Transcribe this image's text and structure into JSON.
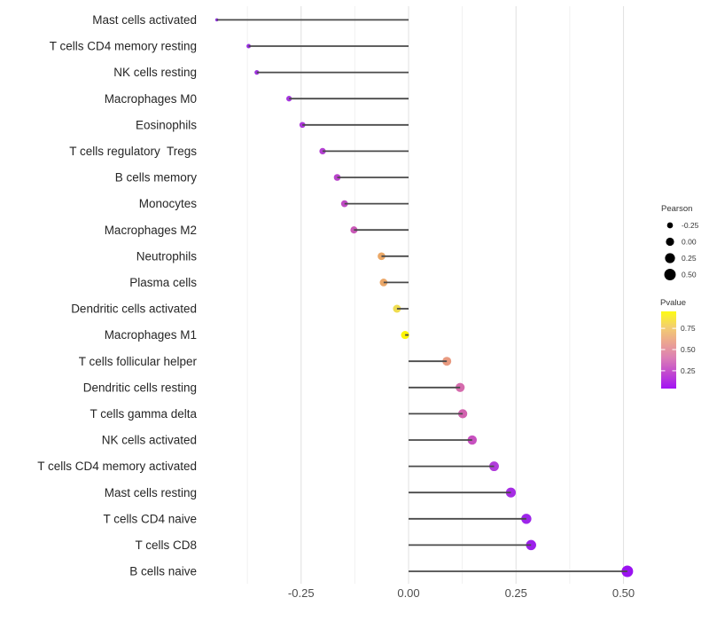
{
  "chart_data": {
    "type": "lollipop",
    "title": "",
    "xlabel": "",
    "ylabel": "",
    "xlim": [
      -0.494,
      0.557
    ],
    "grid": "vertical-only",
    "x_axis": {
      "major_ticks": [
        {
          "label": "-0.25",
          "value": -0.25
        },
        {
          "label": "0.00",
          "value": 0.0
        },
        {
          "label": "0.25",
          "value": 0.25
        },
        {
          "label": "0.50",
          "value": 0.5
        }
      ],
      "minor_ticks": [
        -0.375,
        -0.125,
        0.125,
        0.375
      ]
    },
    "points": [
      {
        "category": "Mast cells activated",
        "pearson": -0.446,
        "color": "#8E2BE1"
      },
      {
        "category": "T cells CD4 memory resting",
        "pearson": -0.372,
        "color": "#982EE1"
      },
      {
        "category": "NK cells resting",
        "pearson": -0.353,
        "color": "#9F33DF"
      },
      {
        "category": "Macrophages M0",
        "pearson": -0.278,
        "color": "#A637DF"
      },
      {
        "category": "Eosinophils",
        "pearson": -0.247,
        "color": "#AC38DA"
      },
      {
        "category": "T cells regulatory  Tregs",
        "pearson": -0.2,
        "color": "#B33FD2"
      },
      {
        "category": "B cells memory",
        "pearson": -0.166,
        "color": "#B944CB"
      },
      {
        "category": "Monocytes",
        "pearson": -0.149,
        "color": "#C04AC4"
      },
      {
        "category": "Macrophages M2",
        "pearson": -0.127,
        "color": "#C958B7"
      },
      {
        "category": "Neutrophils",
        "pearson": -0.063,
        "color": "#EBA867"
      },
      {
        "category": "Plasma cells",
        "pearson": -0.058,
        "color": "#EBA768"
      },
      {
        "category": "Dendritic cells activated",
        "pearson": -0.027,
        "color": "#EFDC50"
      },
      {
        "category": "Macrophages M1",
        "pearson": -0.008,
        "color": "#FDF503"
      },
      {
        "category": "T cells follicular helper",
        "pearson": 0.089,
        "color": "#E89A80"
      },
      {
        "category": "Dendritic cells resting",
        "pearson": 0.12,
        "color": "#D56BAD"
      },
      {
        "category": "T cells gamma delta",
        "pearson": 0.126,
        "color": "#D263AF"
      },
      {
        "category": "NK cells activated",
        "pearson": 0.148,
        "color": "#C851C0"
      },
      {
        "category": "T cells CD4 memory activated",
        "pearson": 0.199,
        "color": "#B13DDB"
      },
      {
        "category": "Mast cells resting",
        "pearson": 0.238,
        "color": "#A62CE4"
      },
      {
        "category": "T cells CD4 naive",
        "pearson": 0.274,
        "color": "#9D25EA"
      },
      {
        "category": "T cells CD8",
        "pearson": 0.285,
        "color": "#9C20EB"
      },
      {
        "category": "B cells naive",
        "pearson": 0.509,
        "color": "#9A13F0"
      }
    ],
    "legend_pearson": {
      "title": "Pearson",
      "dot_color": "#000000",
      "entries": [
        {
          "label": "-0.25",
          "value": -0.25
        },
        {
          "label": "0.00",
          "value": 0.0
        },
        {
          "label": "0.25",
          "value": 0.25
        },
        {
          "label": "0.50",
          "value": 0.5
        }
      ]
    },
    "legend_pvalue": {
      "title": "Pvalue",
      "gradient_top_to_bottom": [
        "#FDFB13",
        "#F3CF6F",
        "#ECA590",
        "#DC7FB5",
        "#C148CF",
        "#A312F5"
      ],
      "bar_value_range": [
        0.95,
        0.04
      ],
      "ticks": [
        {
          "label": "0.75",
          "value": 0.75
        },
        {
          "label": "0.50",
          "value": 0.5
        },
        {
          "label": "0.25",
          "value": 0.25
        }
      ]
    },
    "colors": {
      "stem": "#4A4A4A",
      "grid_major": "#E3E3E3",
      "grid_minor": "#EFEFEF",
      "axis_text": "#4D4D4D",
      "category_text": "#262626",
      "legend_text": "#333333",
      "background": "#FFFFFF"
    }
  }
}
